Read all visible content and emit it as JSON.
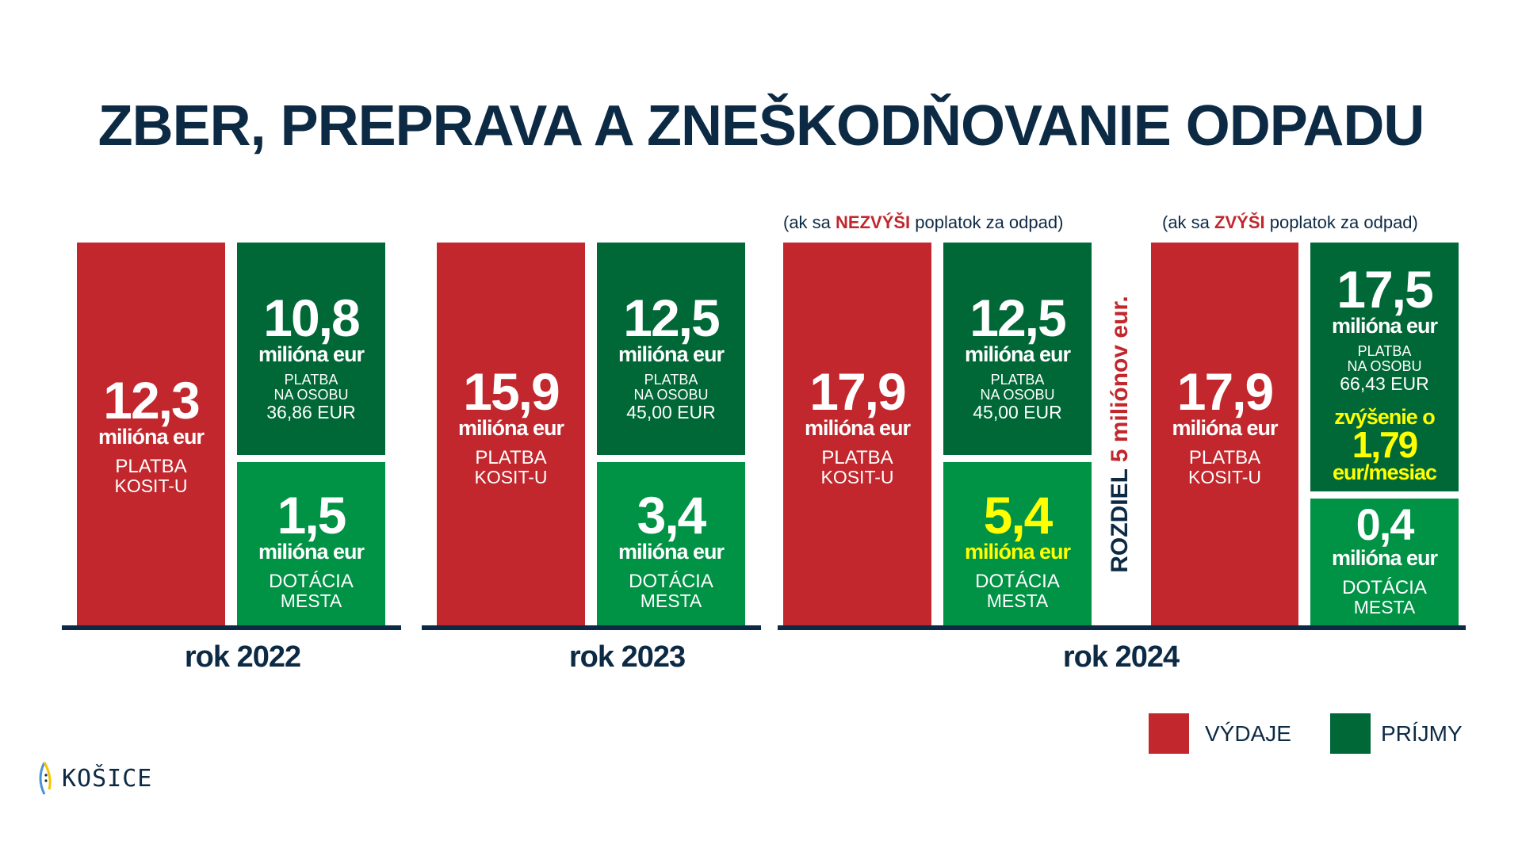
{
  "title": "ZBER, PREPRAVA A ZNEŠKODŇOVANIE ODPADU",
  "unit": "milióna eur",
  "y2022": {
    "year": "rok 2022",
    "expense": {
      "value": "12,3",
      "label1": "PLATBA",
      "label2": "KOSIT-U"
    },
    "income_fee": {
      "value": "10,8",
      "label1": "PLATBA",
      "label2": "NA OSOBU",
      "per_person": "36,86 EUR"
    },
    "income_subsidy": {
      "value": "1,5",
      "label1": "DOTÁCIA",
      "label2": "MESTA"
    }
  },
  "y2023": {
    "year": "rok 2023",
    "expense": {
      "value": "15,9",
      "label1": "PLATBA",
      "label2": "KOSIT-U"
    },
    "income_fee": {
      "value": "12,5",
      "label1": "PLATBA",
      "label2": "NA OSOBU",
      "per_person": "45,00 EUR"
    },
    "income_subsidy": {
      "value": "3,4",
      "label1": "DOTÁCIA",
      "label2": "MESTA"
    }
  },
  "y2024": {
    "year": "rok 2024",
    "scenario_a": {
      "note_pre": "(ak sa ",
      "note_em": "NEZVÝŠI",
      "note_post": " poplatok za odpad)",
      "expense": {
        "value": "17,9",
        "label1": "PLATBA",
        "label2": "KOSIT-U"
      },
      "income_fee": {
        "value": "12,5",
        "label1": "PLATBA",
        "label2": "NA OSOBU",
        "per_person": "45,00 EUR"
      },
      "income_subsidy": {
        "value": "5,4",
        "label1": "DOTÁCIA",
        "label2": "MESTA"
      }
    },
    "difference": {
      "pre": "ROZDIEL ",
      "num": "5",
      "post": " miliónov eur."
    },
    "scenario_b": {
      "note_pre": "(ak sa ",
      "note_em": "ZVÝŠI",
      "note_post": " poplatok za odpad)",
      "expense": {
        "value": "17,9",
        "label1": "PLATBA",
        "label2": "KOSIT-U"
      },
      "income_fee": {
        "value": "17,5",
        "label1": "PLATBA",
        "label2": "NA OSOBU",
        "per_person": "66,43 EUR",
        "increase_label": "zvýšenie o",
        "increase_value": "1,79",
        "increase_unit": "eur/mesiac"
      },
      "income_subsidy": {
        "value": "0,4",
        "label1": "DOTÁCIA",
        "label2": "MESTA"
      }
    }
  },
  "legend": {
    "expenses": "VÝDAJE",
    "income": "PRÍJMY"
  },
  "logo": "KOŠICE",
  "colors": {
    "expense": "#c1272d",
    "income_fee": "#006837",
    "income_subsidy": "#009245",
    "navy": "#0d2a45",
    "highlight": "#ffff00"
  }
}
